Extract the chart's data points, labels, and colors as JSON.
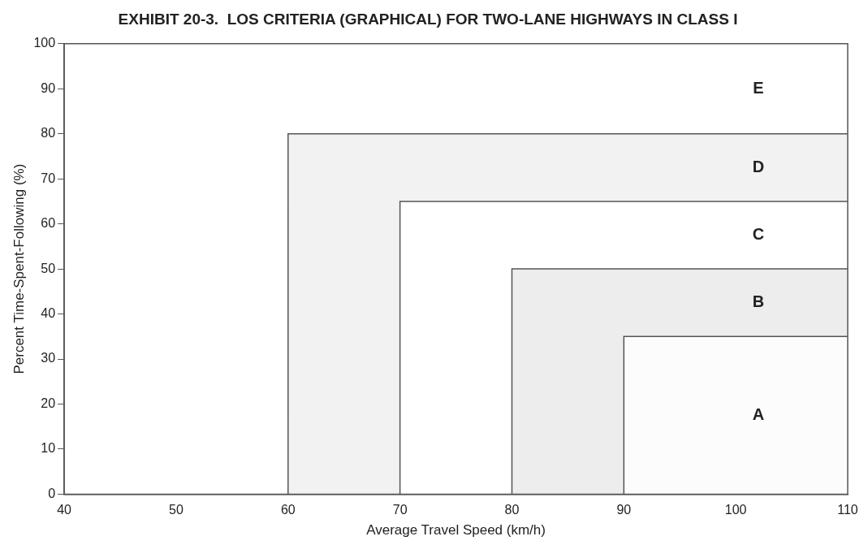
{
  "chart_data": {
    "type": "area",
    "title": "EXHIBIT 20-3.  LOS CRITERIA (GRAPHICAL) FOR TWO-LANE HIGHWAYS IN CLASS I",
    "xlabel": "Average Travel Speed (km/h)",
    "ylabel": "Percent Time-Spent-Following (%)",
    "series": [
      {
        "x": [
          60,
          60,
          110
        ],
        "values": [
          0,
          80,
          80
        ],
        "color": "#f2f2f2"
      },
      {
        "x": [
          70,
          70,
          110
        ],
        "values": [
          0,
          65,
          65
        ],
        "color": "#ffffff"
      },
      {
        "x": [
          80,
          80,
          110
        ],
        "values": [
          0,
          50,
          50
        ],
        "color": "#ededed"
      },
      {
        "x": [
          90,
          90,
          110
        ],
        "values": [
          0,
          35,
          35
        ],
        "color": "#fcfcfc"
      }
    ],
    "annotations": [
      "E",
      "D",
      "C",
      "B",
      "A"
    ],
    "xlim": [
      40,
      110
    ],
    "xticks": [
      40,
      50,
      60,
      70,
      80,
      90,
      100,
      110
    ],
    "ylim": [
      0,
      100
    ],
    "yticks": [
      0,
      10,
      20,
      30,
      40,
      50,
      60,
      70,
      80,
      90,
      100
    ],
    "grid": false,
    "legend": false,
    "marker": "none"
  }
}
